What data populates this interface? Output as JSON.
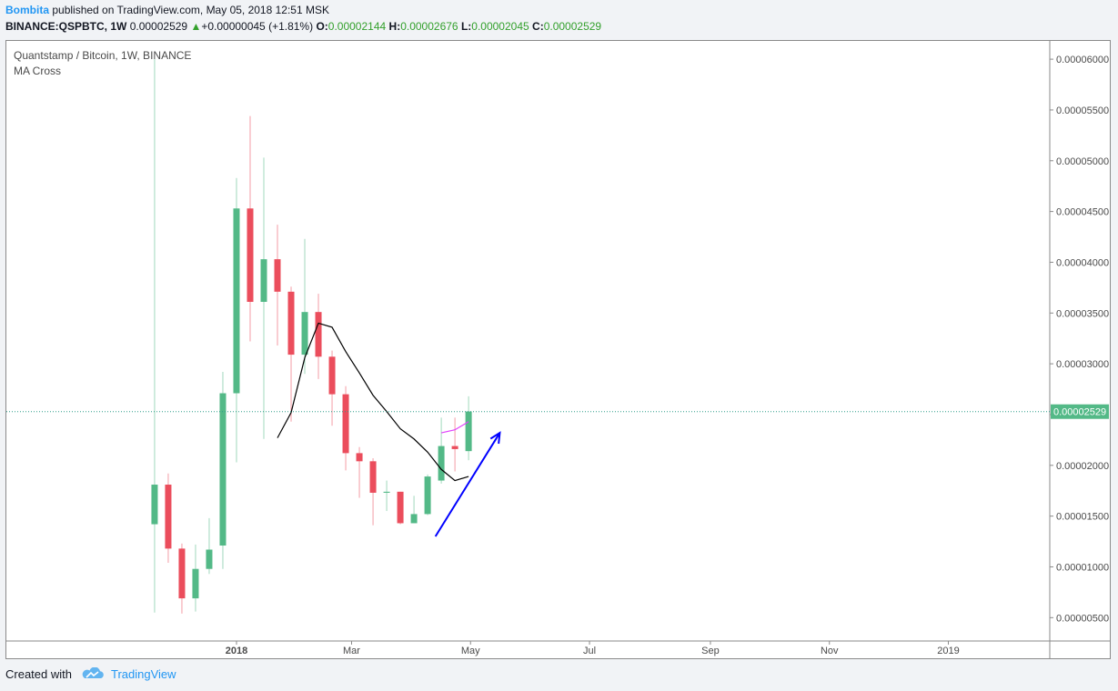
{
  "header": {
    "author": "Bombita",
    "published": "published on TradingView.com, May 05, 2018 12:51 MSK",
    "symbol_line_prefix": "BINANCE:QSPBTC, 1W",
    "last": "0.00002529",
    "change_arrow": "▲",
    "change": "+0.00000045 (+1.81%)",
    "o_label": "O:",
    "o_value": "0.00002144",
    "h_label": "H:",
    "h_value": "0.00002676",
    "l_label": "L:",
    "l_value": "0.00002045",
    "c_label": "C:",
    "c_value": "0.00002529"
  },
  "legend": {
    "title": "Quantstamp / Bitcoin, 1W, BINANCE",
    "indicator": "MA Cross"
  },
  "footer": {
    "created_with": "Created with",
    "brand": "TradingView"
  },
  "colors": {
    "up": "#53b987",
    "down": "#eb4d5c",
    "ma_slow": "#000000",
    "ma_fast": "#e040fb",
    "arrow": "#0000ff",
    "last_price": "#2e9e8a"
  },
  "chart_data": {
    "type": "candlestick",
    "title": "Quantstamp / Bitcoin, 1W, BINANCE",
    "y_tick_labels": [
      "0.00006000",
      "0.00005500",
      "0.00005000",
      "0.00004500",
      "0.00004000",
      "0.00003500",
      "0.00003000",
      "0.00002500",
      "0.00002000",
      "0.00001500",
      "0.00001000",
      "0.00000500"
    ],
    "y_ticks": [
      6e-05,
      5.5e-05,
      5e-05,
      4.5e-05,
      4e-05,
      3.5e-05,
      3e-05,
      2.5e-05,
      2e-05,
      1.5e-05,
      1e-05,
      5e-06
    ],
    "x_tick_labels": [
      "2018",
      "Mar",
      "May",
      "Jul",
      "Sep",
      "Nov",
      "2019"
    ],
    "x_ticks": [
      "2018-01-01",
      "2018-03-01",
      "2018-05-01",
      "2018-07-01",
      "2018-09-01",
      "2018-11-01",
      "2019-01-01"
    ],
    "x_range": [
      "2017-09-05",
      "2019-02-22"
    ],
    "y_range": [
      2.7e-06,
      6.18e-05
    ],
    "last_price_label": "0.00002529",
    "last_price": 2.529e-05,
    "candles": [
      {
        "date": "2017-11-20",
        "o": 1.42e-05,
        "h": 6e-05,
        "l": 5.5e-06,
        "c": 1.81e-05
      },
      {
        "date": "2017-11-27",
        "o": 1.81e-05,
        "h": 1.92e-05,
        "l": 1.04e-05,
        "c": 1.18e-05
      },
      {
        "date": "2017-12-04",
        "o": 1.18e-05,
        "h": 1.23e-05,
        "l": 5.4e-06,
        "c": 6.9e-06
      },
      {
        "date": "2017-12-11",
        "o": 6.9e-06,
        "h": 1.22e-05,
        "l": 5.6e-06,
        "c": 9.8e-06
      },
      {
        "date": "2017-12-18",
        "o": 9.8e-06,
        "h": 1.48e-05,
        "l": 9.3e-06,
        "c": 1.17e-05
      },
      {
        "date": "2017-12-25",
        "o": 1.21e-05,
        "h": 2.92e-05,
        "l": 9.8e-06,
        "c": 2.71e-05
      },
      {
        "date": "2018-01-01",
        "o": 2.71e-05,
        "h": 4.83e-05,
        "l": 2.03e-05,
        "c": 4.53e-05
      },
      {
        "date": "2018-01-08",
        "o": 4.53e-05,
        "h": 5.44e-05,
        "l": 3.22e-05,
        "c": 3.61e-05
      },
      {
        "date": "2018-01-15",
        "o": 3.61e-05,
        "h": 5.03e-05,
        "l": 2.26e-05,
        "c": 4.03e-05
      },
      {
        "date": "2018-01-22",
        "o": 4.03e-05,
        "h": 4.37e-05,
        "l": 3.18e-05,
        "c": 3.71e-05
      },
      {
        "date": "2018-01-29",
        "o": 3.71e-05,
        "h": 3.76e-05,
        "l": 2.43e-05,
        "c": 3.09e-05
      },
      {
        "date": "2018-02-05",
        "o": 3.09e-05,
        "h": 4.23e-05,
        "l": 2.9e-05,
        "c": 3.51e-05
      },
      {
        "date": "2018-02-12",
        "o": 3.51e-05,
        "h": 3.69e-05,
        "l": 2.85e-05,
        "c": 3.07e-05
      },
      {
        "date": "2018-02-19",
        "o": 3.07e-05,
        "h": 3.13e-05,
        "l": 2.39e-05,
        "c": 2.7e-05
      },
      {
        "date": "2018-02-26",
        "o": 2.7e-05,
        "h": 2.78e-05,
        "l": 1.95e-05,
        "c": 2.12e-05
      },
      {
        "date": "2018-03-05",
        "o": 2.12e-05,
        "h": 2.18e-05,
        "l": 1.68e-05,
        "c": 2.04e-05
      },
      {
        "date": "2018-03-12",
        "o": 2.04e-05,
        "h": 2.07e-05,
        "l": 1.41e-05,
        "c": 1.73e-05
      },
      {
        "date": "2018-03-19",
        "o": 1.73e-05,
        "h": 1.85e-05,
        "l": 1.55e-05,
        "c": 1.74e-05
      },
      {
        "date": "2018-03-26",
        "o": 1.74e-05,
        "h": 1.74e-05,
        "l": 1.42e-05,
        "c": 1.43e-05
      },
      {
        "date": "2018-04-02",
        "o": 1.43e-05,
        "h": 1.7e-05,
        "l": 1.43e-05,
        "c": 1.52e-05
      },
      {
        "date": "2018-04-09",
        "o": 1.52e-05,
        "h": 1.91e-05,
        "l": 1.51e-05,
        "c": 1.89e-05
      },
      {
        "date": "2018-04-16",
        "o": 1.85e-05,
        "h": 2.47e-05,
        "l": 1.82e-05,
        "c": 2.19e-05
      },
      {
        "date": "2018-04-23",
        "o": 2.19e-05,
        "h": 2.47e-05,
        "l": 1.94e-05,
        "c": 2.16e-05
      },
      {
        "date": "2018-04-30",
        "o": 2.14e-05,
        "h": 2.68e-05,
        "l": 2.05e-05,
        "c": 2.53e-05
      }
    ],
    "series": [
      {
        "kind": "ma_slow",
        "x": [
          "2018-01-22",
          "2018-01-29",
          "2018-02-05",
          "2018-02-12",
          "2018-02-19",
          "2018-02-26",
          "2018-03-05",
          "2018-03-12",
          "2018-03-19",
          "2018-03-26",
          "2018-04-02",
          "2018-04-09",
          "2018-04-16",
          "2018-04-23",
          "2018-04-30"
        ],
        "values": [
          2.27e-05,
          2.52e-05,
          3.06e-05,
          3.4e-05,
          3.36e-05,
          3.12e-05,
          2.91e-05,
          2.69e-05,
          2.53e-05,
          2.36e-05,
          2.26e-05,
          2.13e-05,
          1.96e-05,
          1.85e-05,
          1.89e-05
        ]
      },
      {
        "kind": "ma_fast",
        "x": [
          "2018-04-16",
          "2018-04-23",
          "2018-04-30"
        ],
        "values": [
          2.32e-05,
          2.35e-05,
          2.43e-05
        ]
      }
    ],
    "annotations": [
      {
        "type": "arrow",
        "from": {
          "date": "2018-04-13",
          "value": 1.3e-05
        },
        "to": {
          "date": "2018-05-16",
          "value": 2.32e-05
        }
      }
    ],
    "grid": false,
    "legend": "top-left"
  }
}
